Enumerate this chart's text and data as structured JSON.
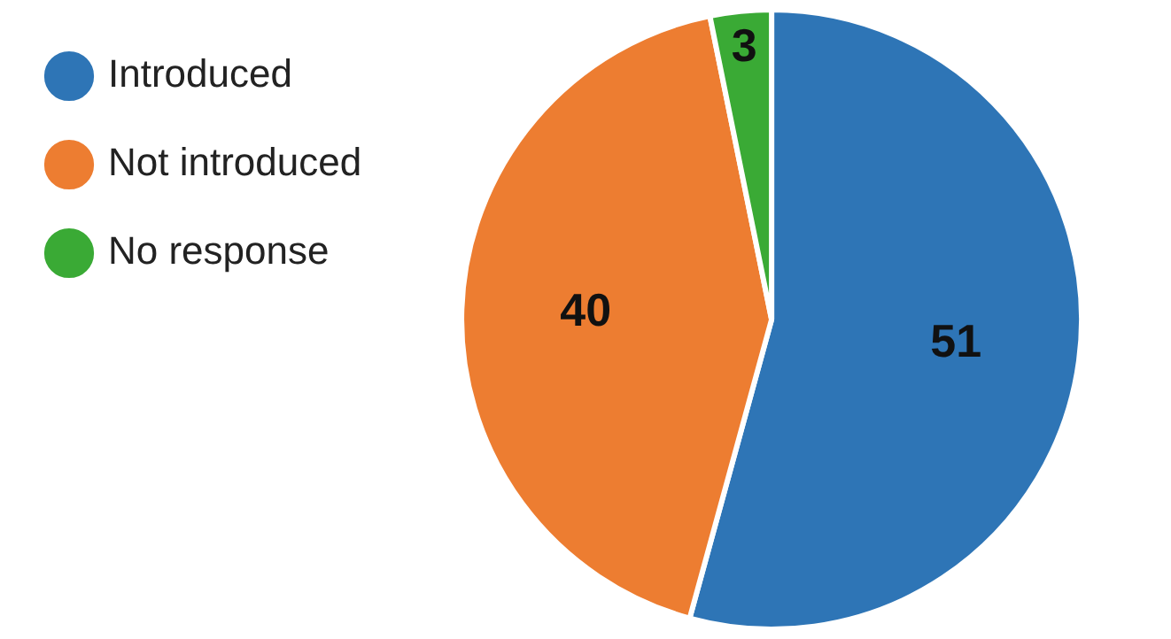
{
  "chart_data": {
    "type": "pie",
    "categories": [
      "Introduced",
      "Not introduced",
      "No response"
    ],
    "values": [
      51,
      40,
      3
    ],
    "colors": [
      "#2e75b6",
      "#ed7d31",
      "#3aaa35"
    ],
    "data_labels": true,
    "legend": "left"
  }
}
